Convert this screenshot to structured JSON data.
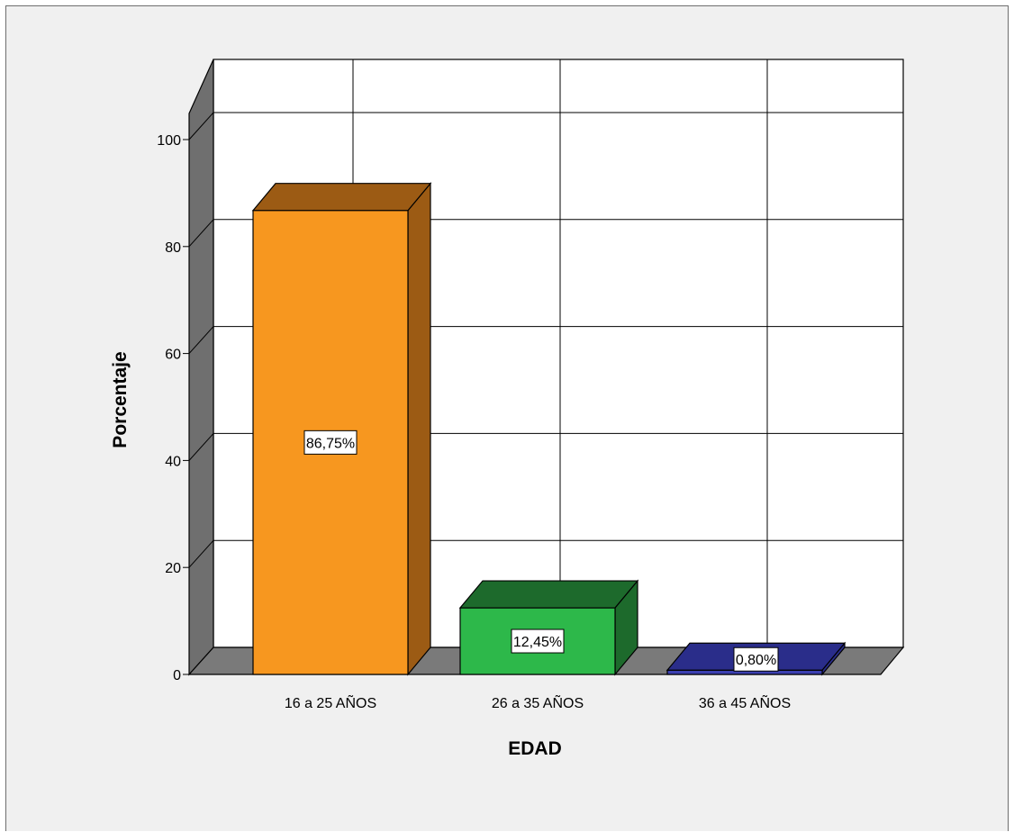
{
  "chart_data": {
    "type": "bar",
    "title": "",
    "xlabel": "EDAD",
    "ylabel": "Porcentaje",
    "categories": [
      "16 a 25 AÑOS",
      "26 a 35 AÑOS",
      "36 a 45 AÑOS"
    ],
    "values": [
      86.75,
      12.45,
      0.8
    ],
    "data_labels": [
      "86,75%",
      "12,45%",
      "0,80%"
    ],
    "ylim": [
      0,
      100
    ],
    "yticks": [
      "0",
      "20",
      "40",
      "60",
      "80",
      "100"
    ],
    "grid": true,
    "legend": "none",
    "colors": {
      "bar_fronts": [
        "#f7971f",
        "#2db84a",
        "#3b3fb0"
      ],
      "bar_tops": [
        "#9c5b14",
        "#1d6a2c",
        "#2a2d8a"
      ],
      "bar_sides": [
        "#9c5b14",
        "#1d6a2c",
        "#2a2d8a"
      ],
      "wall": "#6f6f6f",
      "floor": "#7a7a7a",
      "back_wall": "#ffffff",
      "frame_bg": "#f0f0f0"
    }
  }
}
